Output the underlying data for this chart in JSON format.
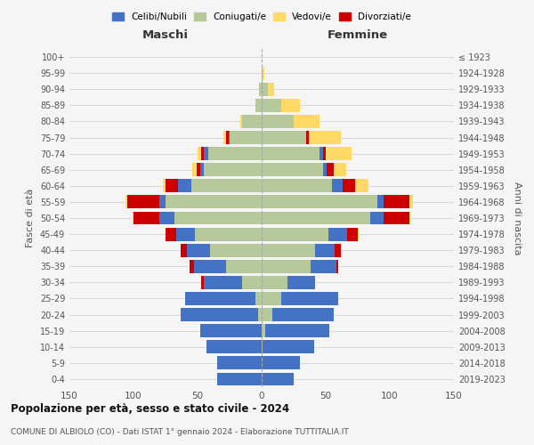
{
  "age_groups": [
    "0-4",
    "5-9",
    "10-14",
    "15-19",
    "20-24",
    "25-29",
    "30-34",
    "35-39",
    "40-44",
    "45-49",
    "50-54",
    "55-59",
    "60-64",
    "65-69",
    "70-74",
    "75-79",
    "80-84",
    "85-89",
    "90-94",
    "95-99",
    "100+"
  ],
  "birth_years": [
    "2019-2023",
    "2014-2018",
    "2009-2013",
    "2004-2008",
    "1999-2003",
    "1994-1998",
    "1989-1993",
    "1984-1988",
    "1979-1983",
    "1974-1978",
    "1969-1973",
    "1964-1968",
    "1959-1963",
    "1954-1958",
    "1949-1953",
    "1944-1948",
    "1939-1943",
    "1934-1938",
    "1929-1933",
    "1924-1928",
    "≤ 1923"
  ],
  "colors": {
    "celibi": "#4472c4",
    "coniugati": "#b5c99a",
    "vedovi": "#ffd966",
    "divorziati": "#cc0000"
  },
  "males": {
    "coniugati": [
      0,
      0,
      0,
      0,
      3,
      5,
      15,
      28,
      40,
      52,
      68,
      75,
      55,
      45,
      42,
      25,
      15,
      5,
      2,
      0,
      0
    ],
    "celibi": [
      35,
      35,
      43,
      48,
      60,
      55,
      30,
      25,
      18,
      15,
      12,
      5,
      10,
      3,
      3,
      1,
      0,
      0,
      0,
      0,
      0
    ],
    "vedovi": [
      0,
      0,
      0,
      0,
      0,
      0,
      0,
      0,
      0,
      0,
      1,
      1,
      2,
      3,
      3,
      2,
      2,
      0,
      0,
      0,
      0
    ],
    "divorziati": [
      0,
      0,
      0,
      0,
      0,
      0,
      2,
      3,
      5,
      8,
      20,
      25,
      10,
      3,
      2,
      2,
      0,
      0,
      0,
      0,
      0
    ]
  },
  "females": {
    "coniugati": [
      0,
      0,
      1,
      3,
      8,
      15,
      20,
      38,
      42,
      52,
      85,
      90,
      55,
      48,
      45,
      35,
      25,
      15,
      5,
      1,
      0
    ],
    "celibi": [
      25,
      30,
      40,
      50,
      48,
      45,
      22,
      20,
      15,
      15,
      10,
      5,
      8,
      3,
      3,
      0,
      0,
      0,
      0,
      0,
      0
    ],
    "vedovi": [
      0,
      0,
      0,
      0,
      0,
      0,
      0,
      0,
      0,
      1,
      1,
      3,
      10,
      10,
      20,
      25,
      20,
      15,
      5,
      1,
      0
    ],
    "divorziati": [
      0,
      0,
      0,
      0,
      0,
      0,
      0,
      2,
      5,
      8,
      20,
      20,
      10,
      5,
      2,
      2,
      0,
      0,
      0,
      0,
      0
    ]
  },
  "title": "Popolazione per età, sesso e stato civile - 2024",
  "subtitle": "COMUNE DI ALBIOLO (CO) - Dati ISTAT 1° gennaio 2024 - Elaborazione TUTTITALIA.IT",
  "xlabel_left": "Maschi",
  "xlabel_right": "Femmine",
  "ylabel_left": "Fasce di età",
  "ylabel_right": "Anni di nascita",
  "xlim": 150,
  "background_color": "#f5f5f5",
  "grid_color": "#cccccc",
  "legend_labels": [
    "Celibi/Nubili",
    "Coniugati/e",
    "Vedovi/e",
    "Divorziati/e"
  ]
}
